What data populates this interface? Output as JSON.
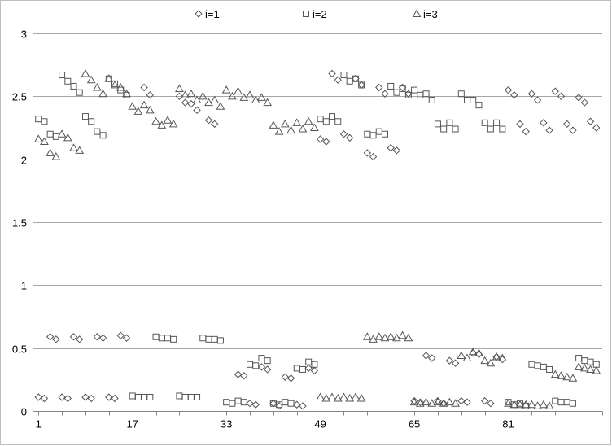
{
  "chart_data": {
    "type": "scatter",
    "ylim": [
      0,
      3
    ],
    "yticks": [
      "0",
      "0.5",
      "1",
      "1.5",
      "2",
      "2.5",
      "3"
    ],
    "xticks": [
      "1",
      "17",
      "33",
      "49",
      "65",
      "81"
    ],
    "xlim": [
      0,
      97
    ],
    "grid": "horizontal",
    "legend": "top",
    "series": [
      {
        "name": "i=1",
        "marker": "diamond",
        "points": [
          [
            1,
            0.11
          ],
          [
            2,
            0.1
          ],
          [
            3,
            0.59
          ],
          [
            4,
            0.57
          ],
          [
            5,
            0.11
          ],
          [
            6,
            0.1
          ],
          [
            7,
            0.59
          ],
          [
            8,
            0.57
          ],
          [
            9,
            0.11
          ],
          [
            10,
            0.1
          ],
          [
            11,
            0.59
          ],
          [
            12,
            0.58
          ],
          [
            13,
            0.11
          ],
          [
            14,
            0.1
          ],
          [
            15,
            0.6
          ],
          [
            16,
            0.58
          ],
          [
            19,
            2.57
          ],
          [
            20,
            2.51
          ],
          [
            25,
            2.5
          ],
          [
            26,
            2.45
          ],
          [
            27,
            2.44
          ],
          [
            28,
            2.39
          ],
          [
            30,
            2.31
          ],
          [
            31,
            2.28
          ],
          [
            35,
            0.29
          ],
          [
            36,
            0.28
          ],
          [
            37,
            0.06
          ],
          [
            38,
            0.05
          ],
          [
            39,
            0.35
          ],
          [
            40,
            0.33
          ],
          [
            41,
            0.06
          ],
          [
            42,
            0.04
          ],
          [
            43,
            0.27
          ],
          [
            44,
            0.26
          ],
          [
            45,
            0.05
          ],
          [
            46,
            0.04
          ],
          [
            47,
            0.34
          ],
          [
            48,
            0.32
          ],
          [
            49,
            2.16
          ],
          [
            50,
            2.14
          ],
          [
            51,
            2.68
          ],
          [
            52,
            2.63
          ],
          [
            53,
            2.2
          ],
          [
            54,
            2.17
          ],
          [
            55,
            2.64
          ],
          [
            56,
            2.59
          ],
          [
            57,
            2.05
          ],
          [
            58,
            2.02
          ],
          [
            59,
            2.57
          ],
          [
            60,
            2.52
          ],
          [
            61,
            2.09
          ],
          [
            62,
            2.07
          ],
          [
            63,
            2.57
          ],
          [
            64,
            2.52
          ],
          [
            65,
            0.08
          ],
          [
            66,
            0.07
          ],
          [
            67,
            0.44
          ],
          [
            68,
            0.42
          ],
          [
            69,
            0.08
          ],
          [
            70,
            0.06
          ],
          [
            71,
            0.4
          ],
          [
            72,
            0.38
          ],
          [
            73,
            0.08
          ],
          [
            74,
            0.07
          ],
          [
            75,
            0.46
          ],
          [
            76,
            0.45
          ],
          [
            77,
            0.08
          ],
          [
            78,
            0.06
          ],
          [
            79,
            0.43
          ],
          [
            80,
            0.41
          ],
          [
            81,
            2.55
          ],
          [
            82,
            2.51
          ],
          [
            83,
            2.28
          ],
          [
            84,
            2.22
          ],
          [
            85,
            2.52
          ],
          [
            86,
            2.47
          ],
          [
            87,
            2.29
          ],
          [
            88,
            2.23
          ],
          [
            89,
            2.54
          ],
          [
            90,
            2.5
          ],
          [
            91,
            2.28
          ],
          [
            92,
            2.23
          ],
          [
            93,
            2.49
          ],
          [
            94,
            2.45
          ],
          [
            95,
            2.3
          ],
          [
            96,
            2.25
          ]
        ]
      },
      {
        "name": "i=2",
        "marker": "square",
        "points": [
          [
            1,
            2.32
          ],
          [
            2,
            2.3
          ],
          [
            3,
            2.2
          ],
          [
            4,
            2.18
          ],
          [
            5,
            2.67
          ],
          [
            6,
            2.62
          ],
          [
            7,
            2.58
          ],
          [
            8,
            2.53
          ],
          [
            9,
            2.34
          ],
          [
            10,
            2.3
          ],
          [
            11,
            2.22
          ],
          [
            12,
            2.19
          ],
          [
            13,
            2.64
          ],
          [
            14,
            2.6
          ],
          [
            15,
            2.55
          ],
          [
            16,
            2.51
          ],
          [
            17,
            0.12
          ],
          [
            18,
            0.11
          ],
          [
            19,
            0.11
          ],
          [
            20,
            0.11
          ],
          [
            21,
            0.59
          ],
          [
            22,
            0.58
          ],
          [
            23,
            0.58
          ],
          [
            24,
            0.57
          ],
          [
            25,
            0.12
          ],
          [
            26,
            0.11
          ],
          [
            27,
            0.11
          ],
          [
            28,
            0.11
          ],
          [
            29,
            0.58
          ],
          [
            30,
            0.57
          ],
          [
            31,
            0.57
          ],
          [
            32,
            0.56
          ],
          [
            33,
            0.07
          ],
          [
            34,
            0.06
          ],
          [
            35,
            0.08
          ],
          [
            36,
            0.07
          ],
          [
            37,
            0.37
          ],
          [
            38,
            0.36
          ],
          [
            39,
            0.42
          ],
          [
            40,
            0.4
          ],
          [
            41,
            0.06
          ],
          [
            42,
            0.05
          ],
          [
            43,
            0.07
          ],
          [
            44,
            0.06
          ],
          [
            45,
            0.34
          ],
          [
            46,
            0.33
          ],
          [
            47,
            0.39
          ],
          [
            48,
            0.37
          ],
          [
            49,
            2.32
          ],
          [
            50,
            2.3
          ],
          [
            51,
            2.34
          ],
          [
            52,
            2.3
          ],
          [
            53,
            2.67
          ],
          [
            54,
            2.62
          ],
          [
            55,
            2.64
          ],
          [
            56,
            2.59
          ],
          [
            57,
            2.2
          ],
          [
            58,
            2.19
          ],
          [
            59,
            2.22
          ],
          [
            60,
            2.2
          ],
          [
            61,
            2.58
          ],
          [
            62,
            2.53
          ],
          [
            63,
            2.56
          ],
          [
            64,
            2.51
          ],
          [
            65,
            2.55
          ],
          [
            66,
            2.51
          ],
          [
            67,
            2.52
          ],
          [
            68,
            2.47
          ],
          [
            69,
            2.28
          ],
          [
            70,
            2.24
          ],
          [
            71,
            2.29
          ],
          [
            72,
            2.24
          ],
          [
            73,
            2.52
          ],
          [
            74,
            2.47
          ],
          [
            75,
            2.47
          ],
          [
            76,
            2.43
          ],
          [
            77,
            2.29
          ],
          [
            78,
            2.24
          ],
          [
            79,
            2.29
          ],
          [
            80,
            2.24
          ],
          [
            81,
            0.07
          ],
          [
            82,
            0.05
          ],
          [
            83,
            0.06
          ],
          [
            84,
            0.04
          ],
          [
            85,
            0.37
          ],
          [
            86,
            0.36
          ],
          [
            87,
            0.35
          ],
          [
            88,
            0.33
          ],
          [
            89,
            0.08
          ],
          [
            90,
            0.07
          ],
          [
            91,
            0.07
          ],
          [
            92,
            0.06
          ],
          [
            93,
            0.42
          ],
          [
            94,
            0.4
          ],
          [
            95,
            0.39
          ],
          [
            96,
            0.37
          ]
        ]
      },
      {
        "name": "i=3",
        "marker": "triangle",
        "points": [
          [
            1,
            2.16
          ],
          [
            2,
            2.14
          ],
          [
            3,
            2.05
          ],
          [
            4,
            2.02
          ],
          [
            5,
            2.2
          ],
          [
            6,
            2.17
          ],
          [
            7,
            2.09
          ],
          [
            8,
            2.07
          ],
          [
            9,
            2.68
          ],
          [
            10,
            2.63
          ],
          [
            11,
            2.57
          ],
          [
            12,
            2.52
          ],
          [
            13,
            2.64
          ],
          [
            14,
            2.59
          ],
          [
            15,
            2.57
          ],
          [
            16,
            2.52
          ],
          [
            17,
            2.42
          ],
          [
            18,
            2.38
          ],
          [
            19,
            2.43
          ],
          [
            20,
            2.39
          ],
          [
            21,
            2.3
          ],
          [
            22,
            2.27
          ],
          [
            23,
            2.31
          ],
          [
            24,
            2.28
          ],
          [
            25,
            2.56
          ],
          [
            26,
            2.51
          ],
          [
            27,
            2.52
          ],
          [
            28,
            2.47
          ],
          [
            29,
            2.5
          ],
          [
            30,
            2.45
          ],
          [
            31,
            2.47
          ],
          [
            32,
            2.42
          ],
          [
            33,
            2.55
          ],
          [
            34,
            2.5
          ],
          [
            35,
            2.54
          ],
          [
            36,
            2.49
          ],
          [
            37,
            2.51
          ],
          [
            38,
            2.47
          ],
          [
            39,
            2.49
          ],
          [
            40,
            2.45
          ],
          [
            41,
            2.27
          ],
          [
            42,
            2.22
          ],
          [
            43,
            2.28
          ],
          [
            44,
            2.23
          ],
          [
            45,
            2.29
          ],
          [
            46,
            2.24
          ],
          [
            47,
            2.3
          ],
          [
            48,
            2.25
          ],
          [
            49,
            0.11
          ],
          [
            50,
            0.1
          ],
          [
            51,
            0.11
          ],
          [
            52,
            0.1
          ],
          [
            53,
            0.11
          ],
          [
            54,
            0.1
          ],
          [
            55,
            0.11
          ],
          [
            56,
            0.1
          ],
          [
            57,
            0.59
          ],
          [
            58,
            0.57
          ],
          [
            59,
            0.59
          ],
          [
            60,
            0.58
          ],
          [
            61,
            0.59
          ],
          [
            62,
            0.58
          ],
          [
            63,
            0.6
          ],
          [
            64,
            0.58
          ],
          [
            65,
            0.07
          ],
          [
            66,
            0.06
          ],
          [
            67,
            0.07
          ],
          [
            68,
            0.06
          ],
          [
            69,
            0.07
          ],
          [
            70,
            0.06
          ],
          [
            71,
            0.07
          ],
          [
            72,
            0.06
          ],
          [
            73,
            0.44
          ],
          [
            74,
            0.42
          ],
          [
            75,
            0.47
          ],
          [
            76,
            0.46
          ],
          [
            77,
            0.4
          ],
          [
            78,
            0.38
          ],
          [
            79,
            0.43
          ],
          [
            80,
            0.42
          ],
          [
            81,
            0.06
          ],
          [
            82,
            0.05
          ],
          [
            83,
            0.05
          ],
          [
            84,
            0.05
          ],
          [
            85,
            0.05
          ],
          [
            86,
            0.04
          ],
          [
            87,
            0.05
          ],
          [
            88,
            0.04
          ],
          [
            89,
            0.29
          ],
          [
            90,
            0.28
          ],
          [
            91,
            0.27
          ],
          [
            92,
            0.26
          ],
          [
            93,
            0.35
          ],
          [
            94,
            0.34
          ],
          [
            95,
            0.33
          ],
          [
            96,
            0.32
          ]
        ]
      }
    ]
  }
}
